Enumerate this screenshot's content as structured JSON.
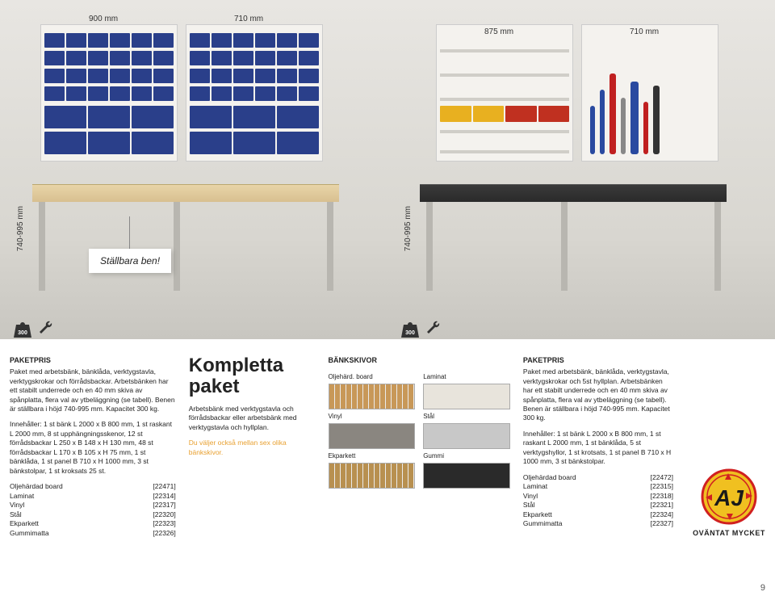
{
  "dimensions": {
    "left_w1": "900 mm",
    "left_w2": "710 mm",
    "left_h": "740-995 mm",
    "right_w1": "875 mm",
    "right_w2": "710 mm",
    "right_h": "740-995 mm"
  },
  "callout": {
    "text": "Ställbara ben!"
  },
  "weight_badge": {
    "value": "300",
    "unit": "KG"
  },
  "col1": {
    "title": "PAKETPRIS",
    "para1": "Paket med arbetsbänk, bänklåda, verktygstavla, verktygskrokar och förrådsbackar. Arbetsbänken har ett stabilt underrede och en 40 mm skiva av spånplatta, flera val av ytbeläggning (se tabell). Benen är ställbara i höjd 740-995 mm. Kapacitet 300 kg.",
    "para2": "Innehåller: 1 st bänk L 2000 x B 800 mm, 1 st raskant L 2000 mm, 8 st upphängningsskenor, 12 st förrådsbackar L 250 x B 148 x H 130 mm, 48 st förrådsbackar L 170 x B 105 x H 75 mm, 1 st bänklåda, 1 st panel B 710 x H 1000 mm, 3 st bänkstolpar, 1 st kroksats 25 st.",
    "skus": [
      {
        "name": "Oljehärdad board",
        "code": "[22471]"
      },
      {
        "name": "Laminat",
        "code": "[22314]"
      },
      {
        "name": "Vinyl",
        "code": "[22317]"
      },
      {
        "name": "Stål",
        "code": "[22320]"
      },
      {
        "name": "Ekparkett",
        "code": "[22323]"
      },
      {
        "name": "Gummimatta",
        "code": "[22326]"
      }
    ]
  },
  "col2": {
    "title": "Kompletta paket",
    "para1": "Arbetsbänk med verktygstavla och förrådsbackar eller arbetsbänk med verktygstavla och hyllplan.",
    "para2": "Du väljer också mellan sex olika bänkskivor."
  },
  "col3": {
    "title": "BÄNKSKIVOR",
    "swatches": [
      {
        "label": "Oljehärd. board",
        "color": "#c89858",
        "texture": "wood"
      },
      {
        "label": "Laminat",
        "color": "#e8e4dc",
        "texture": "solid"
      },
      {
        "label": "Vinyl",
        "color": "#8a8680",
        "texture": "solid"
      },
      {
        "label": "Stål",
        "color": "#c8c8c8",
        "texture": "solid"
      },
      {
        "label": "Ekparkett",
        "color": "#b89050",
        "texture": "wood"
      },
      {
        "label": "Gummi",
        "color": "#2a2a2a",
        "texture": "solid"
      }
    ]
  },
  "col4": {
    "title": "PAKETPRIS",
    "para1": "Paket med arbetsbänk, bänklåda, verktygstavla, verktygskrokar och 5st hyllplan. Arbetsbänken har ett stabilt underrede och en 40 mm skiva av spånplatta, flera val av ytbeläggning (se tabell). Benen är ställbara i höjd 740-995 mm. Kapacitet 300 kg.",
    "para2": "Innehåller: 1 st bänk L 2000 x B 800 mm, 1 st raskant L 2000 mm, 1 st bänklåda, 5 st verktygshyllor, 1 st krotsats, 1 st panel B 710 x H 1000 mm, 3 st bänkstolpar.",
    "skus": [
      {
        "name": "Oljehärdad board",
        "code": "[22472]"
      },
      {
        "name": "Laminat",
        "code": "[22315]"
      },
      {
        "name": "Vinyl",
        "code": "[22318]"
      },
      {
        "name": "Stål",
        "code": "[22321]"
      },
      {
        "name": "Ekparkett",
        "code": "[22324]"
      },
      {
        "name": "Gummimatta",
        "code": "[22327]"
      }
    ]
  },
  "logo": {
    "letters": "AJ",
    "tagline": "OVÄNTAT MYCKET",
    "bg_color": "#f0c020",
    "ring_color": "#d02020"
  },
  "page_number": "9"
}
